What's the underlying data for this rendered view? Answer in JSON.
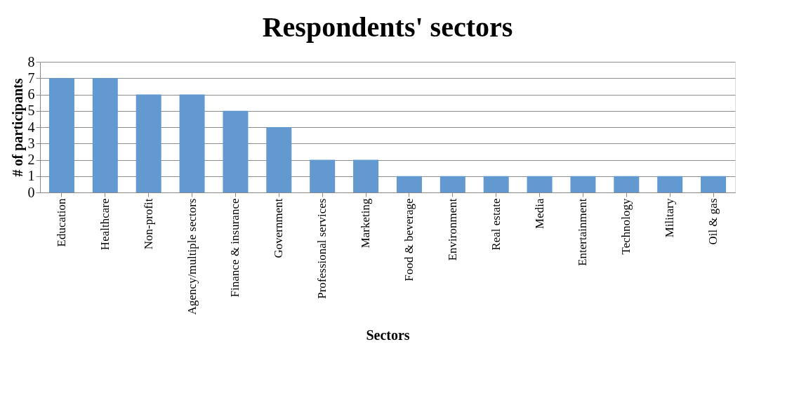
{
  "chart_data": {
    "type": "bar",
    "title": "Respondents' sectors",
    "xlabel": "Sectors",
    "ylabel": "# of participants",
    "categories": [
      "Education",
      "Healthcare",
      "Non-profit",
      "Agency/multiple sectors",
      "Finance & insurance",
      "Government",
      "Professional services",
      "Marketing",
      "Food & beverage",
      "Environment",
      "Real estate",
      "Media",
      "Entertainment",
      "Technology",
      "Military",
      "Oil & gas"
    ],
    "values": [
      7,
      7,
      6,
      6,
      5,
      4,
      2,
      2,
      1,
      1,
      1,
      1,
      1,
      1,
      1,
      1
    ],
    "color": "#6299d0",
    "ylim": [
      0,
      8
    ],
    "yticks": [
      0,
      1,
      2,
      3,
      4,
      5,
      6,
      7,
      8
    ],
    "grid": "y"
  }
}
